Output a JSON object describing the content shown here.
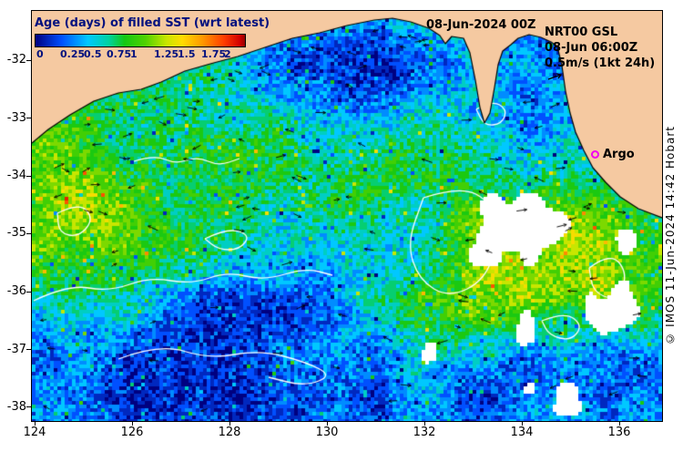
{
  "figure": {
    "title": "Age (days) of filled SST (wrt latest)",
    "date_label": "08-Jun-2024 00Z",
    "model_info": {
      "line1": "NRT00 GSL",
      "line2": "08-Jun 06:00Z",
      "line3": "0.5m/s (1kt 24h)"
    },
    "argo": {
      "label": "Argo"
    },
    "copyright": "© IMOS 11-Jun-2024 14:42 Hobart"
  },
  "colorbar": {
    "min": 0,
    "max": 2,
    "ticks": [
      "0",
      "0.25",
      "0.5",
      "0.75",
      "1",
      "1.25",
      "1.5",
      "1.75",
      "2"
    ]
  },
  "axes": {
    "x_ticks": [
      "124",
      "126",
      "128",
      "130",
      "132",
      "134",
      "136"
    ],
    "y_ticks": [
      "-32",
      "-33",
      "-34",
      "-35",
      "-36",
      "-37",
      "-38"
    ]
  },
  "colors": {
    "land": "#f5c9a1",
    "coastline": "#000000",
    "ocean_nodata": "#ffffff",
    "title_text": "#00107e",
    "header_text": "#000000",
    "argo_marker": "#f000f0",
    "contour": "#ffffff",
    "vector": "#000000",
    "palette_stops": [
      {
        "t": 0.0,
        "c": "#000080"
      },
      {
        "t": 0.25,
        "c": "#0050ff"
      },
      {
        "t": 0.5,
        "c": "#00c8ff"
      },
      {
        "t": 0.7,
        "c": "#00d2a0"
      },
      {
        "t": 0.85,
        "c": "#14c814"
      },
      {
        "t": 1.05,
        "c": "#50d200"
      },
      {
        "t": 1.25,
        "c": "#c8e600"
      },
      {
        "t": 1.4,
        "c": "#ffdc00"
      },
      {
        "t": 1.6,
        "c": "#ff9600"
      },
      {
        "t": 1.8,
        "c": "#ff3c00"
      },
      {
        "t": 1.95,
        "c": "#d20000"
      },
      {
        "t": 2.0,
        "c": "#960000"
      }
    ]
  }
}
